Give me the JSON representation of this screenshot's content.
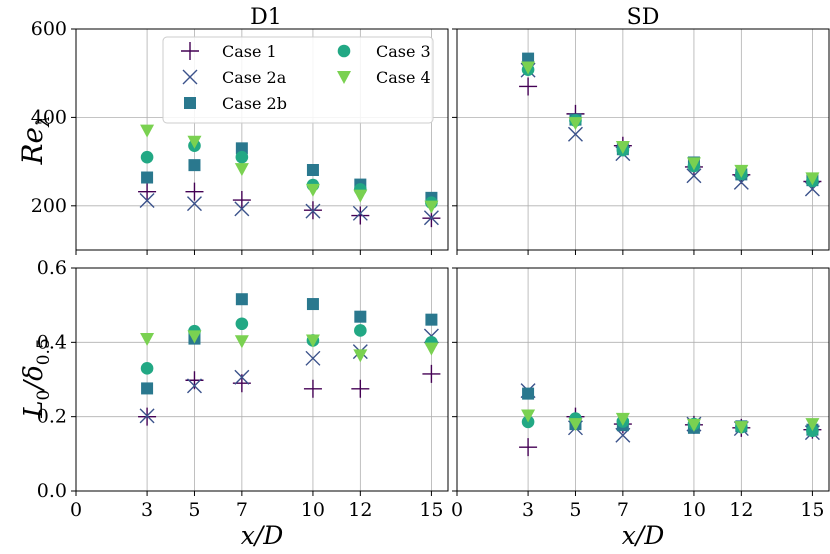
{
  "chart_data": {
    "type": "scatter",
    "x": [
      3,
      5,
      7,
      10,
      12,
      15
    ],
    "xticks": [
      0,
      3,
      5,
      7,
      10,
      12,
      15
    ],
    "xlim": [
      0,
      15.7
    ],
    "xlabel": "x/D",
    "column_titles": [
      "D1",
      "SD"
    ],
    "rows": [
      {
        "ylabel": "Re_λ",
        "ylabel_main": "Re",
        "ylabel_sub": "λ",
        "ylim": [
          100,
          600
        ],
        "yticks": [
          "200",
          "400",
          "600"
        ],
        "ytick_values": [
          200,
          400,
          600
        ],
        "panels": [
          {
            "title": "D1",
            "series": [
              {
                "name": "Case 1",
                "values": [
                  232,
                  232,
                  213,
                  190,
                  178,
                  172
                ]
              },
              {
                "name": "Case 2a",
                "values": [
                  212,
                  205,
                  193,
                  188,
                  183,
                  173
                ]
              },
              {
                "name": "Case 2b",
                "values": [
                  264,
                  292,
                  330,
                  281,
                  248,
                  218
                ]
              },
              {
                "name": "Case 3",
                "values": [
                  310,
                  336,
                  310,
                  247,
                  237,
                  207
                ]
              },
              {
                "name": "Case 4",
                "values": [
                  370,
                  345,
                  283,
                  236,
                  223,
                  198
                ]
              }
            ]
          },
          {
            "title": "SD",
            "series": [
              {
                "name": "Case 1",
                "values": [
                  470,
                  408,
                  336,
                  288,
                  270,
                  255
                ]
              },
              {
                "name": "Case 2a",
                "values": [
                  507,
                  362,
                  318,
                  268,
                  253,
                  238
                ]
              },
              {
                "name": "Case 2b",
                "values": [
                  533,
                  395,
                  328,
                  298,
                  271,
                  258
                ]
              },
              {
                "name": "Case 3",
                "values": [
                  508,
                  393,
                  326,
                  290,
                  272,
                  256
                ]
              },
              {
                "name": "Case 4",
                "values": [
                  513,
                  387,
                  333,
                  296,
                  279,
                  262
                ]
              }
            ]
          }
        ]
      },
      {
        "ylabel": "L_0/δ_0.5",
        "ylabel_main": "L",
        "ylabel_sub": "0",
        "ylabel_mid": "/δ",
        "ylabel_sub2": "0.5",
        "ylim": [
          0.0,
          0.6
        ],
        "yticks": [
          "0.0",
          "0.2",
          "0.4",
          "0.6"
        ],
        "ytick_values": [
          0.0,
          0.2,
          0.4,
          0.6
        ],
        "panels": [
          {
            "title": "D1",
            "series": [
              {
                "name": "Case 1",
                "values": [
                  0.2,
                  0.298,
                  0.29,
                  0.275,
                  0.275,
                  0.315
                ]
              },
              {
                "name": "Case 2a",
                "values": [
                  0.202,
                  0.283,
                  0.306,
                  0.357,
                  0.375,
                  0.417
                ]
              },
              {
                "name": "Case 2b",
                "values": [
                  0.276,
                  0.41,
                  0.516,
                  0.503,
                  0.469,
                  0.461
                ]
              },
              {
                "name": "Case 3",
                "values": [
                  0.33,
                  0.43,
                  0.45,
                  0.405,
                  0.432,
                  0.4
                ]
              },
              {
                "name": "Case 4",
                "values": [
                  0.409,
                  0.416,
                  0.403,
                  0.405,
                  0.365,
                  0.383
                ]
              }
            ]
          },
          {
            "title": "SD",
            "series": [
              {
                "name": "Case 1",
                "values": [
                  0.118,
                  0.2,
                  0.18,
                  0.178,
                  0.17,
                  0.165
                ]
              },
              {
                "name": "Case 2a",
                "values": [
                  0.27,
                  0.17,
                  0.15,
                  0.18,
                  0.168,
                  0.157
                ]
              },
              {
                "name": "Case 2b",
                "values": [
                  0.262,
                  0.18,
                  0.177,
                  0.17,
                  0.174,
                  0.165
                ]
              },
              {
                "name": "Case 3",
                "values": [
                  0.186,
                  0.195,
                  0.187,
                  0.18,
                  0.172,
                  0.162
                ]
              },
              {
                "name": "Case 4",
                "values": [
                  0.203,
                  0.18,
                  0.194,
                  0.178,
                  0.172,
                  0.18
                ]
              }
            ]
          }
        ]
      }
    ],
    "legend": {
      "location": "top-left of upper-left panel",
      "entries": [
        {
          "name": "Case 1",
          "marker": "plus",
          "color": "#440154"
        },
        {
          "name": "Case 2a",
          "marker": "x",
          "color": "#3b528b"
        },
        {
          "name": "Case 2b",
          "marker": "square",
          "color": "#2a788e"
        },
        {
          "name": "Case 3",
          "marker": "circle",
          "color": "#22a884"
        },
        {
          "name": "Case 4",
          "marker": "triangle-down",
          "color": "#7ad151"
        }
      ]
    },
    "grid": true
  }
}
